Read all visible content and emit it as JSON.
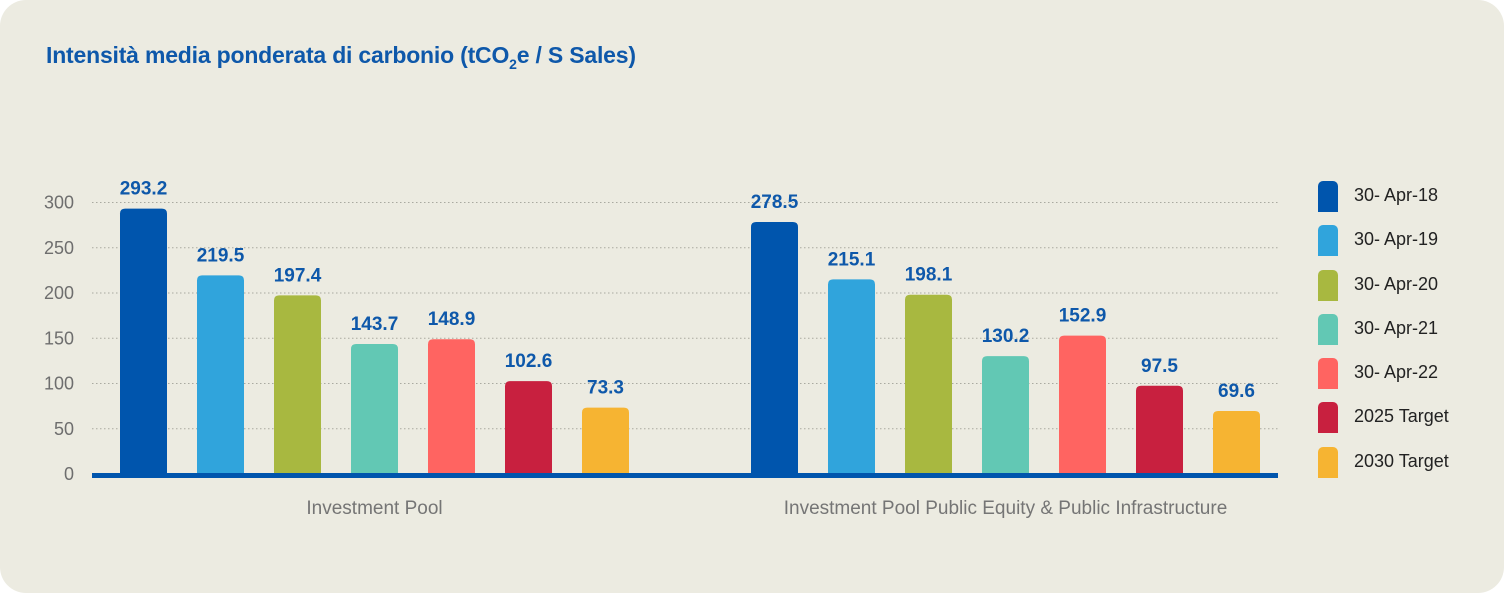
{
  "title": {
    "main": "Intensità media ponderata di carbonio (tCO",
    "sub": "2",
    "tail": "e / S Sales)"
  },
  "chart_data": {
    "type": "bar",
    "title": "Intensità media ponderata di carbonio (tCO2e / S Sales)",
    "xlabel": "",
    "ylabel": "",
    "ylim": [
      0,
      300
    ],
    "yticks": [
      0,
      50,
      100,
      150,
      200,
      250,
      300
    ],
    "grid": true,
    "legend_position": "right",
    "categories": [
      "Investment Pool",
      "Investment Pool Public Equity & Public Infrastructure"
    ],
    "series": [
      {
        "name": "30- Apr-18",
        "color": "#0055ad",
        "values": [
          293.2,
          278.5
        ]
      },
      {
        "name": "30- Apr-19",
        "color": "#30a4dc",
        "values": [
          219.5,
          215.1
        ]
      },
      {
        "name": "30- Apr-20",
        "color": "#a8b840",
        "values": [
          197.4,
          198.1
        ]
      },
      {
        "name": "30- Apr-21",
        "color": "#62c8b4",
        "values": [
          143.7,
          130.2
        ]
      },
      {
        "name": "30- Apr-22",
        "color": "#ff6461",
        "values": [
          148.9,
          152.9
        ]
      },
      {
        "name": "2025 Target",
        "color": "#c8203f",
        "values": [
          102.6,
          97.5
        ]
      },
      {
        "name": "2030 Target",
        "color": "#f6b432",
        "values": [
          73.3,
          69.6
        ]
      }
    ]
  }
}
